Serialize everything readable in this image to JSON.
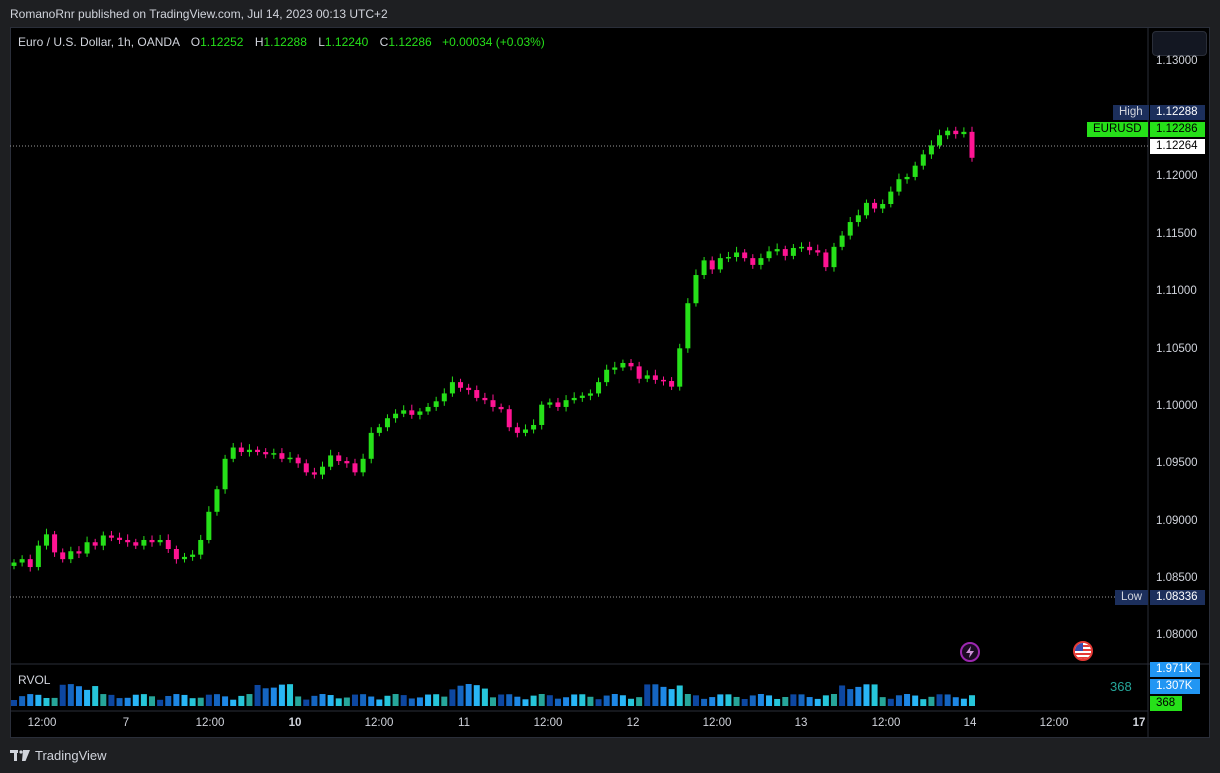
{
  "header": {
    "text": "RomanoRnr published on TradingView.com, Jul 14, 2023 00:13 UTC+2"
  },
  "symbol": {
    "name": "Euro / U.S. Dollar, 1h, OANDA",
    "open_key": "O",
    "open": "1.12252",
    "high_key": "H",
    "high": "1.12288",
    "low_key": "L",
    "low": "1.12240",
    "close_key": "C",
    "close": "1.12286",
    "change": "+0.00034 (+0.03%)"
  },
  "price_axis": {
    "labels": [
      "1.13000",
      "1.12000",
      "1.11500",
      "1.11000",
      "1.10500",
      "1.10000",
      "1.09500",
      "1.09000",
      "1.08500",
      "1.08000"
    ]
  },
  "tags": {
    "high_label": "High",
    "high_value": "1.12288",
    "symbol_label": "EURUSD",
    "symbol_value": "1.12286",
    "crosshair_value": "1.12264",
    "low_label": "Low",
    "low_value": "1.08336"
  },
  "time_axis": {
    "labels": [
      "12:00",
      "7",
      "12:00",
      "10",
      "12:00",
      "11",
      "12:00",
      "12",
      "12:00",
      "13",
      "12:00",
      "14",
      "12:00",
      "17"
    ]
  },
  "rvol": {
    "title": "RVOL",
    "value_label": "368",
    "axis_values": [
      "1.971K",
      "1.307K",
      "368"
    ]
  },
  "events": {
    "left_icon": "lightning-icon",
    "right_icon": "us-flag-icon"
  },
  "footer": {
    "brand": "TradingView"
  },
  "colors": {
    "up": "#26e019",
    "down": "#ff1493",
    "background": "#000000",
    "tag_dark": "#1c2f5c",
    "tag_green": "#26e019",
    "rvol_blue": "#2196f3"
  },
  "chart_data": {
    "type": "candlestick",
    "title": "Euro / U.S. Dollar, 1h, OANDA",
    "x_unit": "hourly bars, Jul 6 – Jul 14 2023",
    "ylim": [
      1.078,
      1.1345
    ],
    "y_ticks": [
      1.08,
      1.085,
      1.09,
      1.095,
      1.1,
      1.105,
      1.11,
      1.115,
      1.12,
      1.13
    ],
    "ohlc_closes_approx": [
      1.087,
      1.0873,
      1.0866,
      1.0885,
      1.0895,
      1.0879,
      1.0873,
      1.088,
      1.0878,
      1.0888,
      1.0885,
      1.0894,
      1.0892,
      1.089,
      1.0888,
      1.0885,
      1.089,
      1.0888,
      1.089,
      1.0882,
      1.0873,
      1.0875,
      1.0877,
      1.089,
      1.0915,
      1.0935,
      1.0962,
      1.0972,
      1.0968,
      1.097,
      1.0968,
      1.0966,
      1.0967,
      1.0962,
      1.0963,
      1.0958,
      1.095,
      1.0948,
      1.0955,
      1.0965,
      1.096,
      1.0958,
      1.095,
      1.0962,
      1.0985,
      1.099,
      1.0998,
      1.1002,
      1.1005,
      1.1001,
      1.1004,
      1.1008,
      1.1013,
      1.102,
      1.103,
      1.1025,
      1.1023,
      1.1016,
      1.1014,
      1.1008,
      1.1006,
      1.099,
      1.0985,
      1.0988,
      1.0992,
      1.101,
      1.1012,
      1.1008,
      1.1014,
      1.1016,
      1.1018,
      1.102,
      1.103,
      1.1041,
      1.1043,
      1.1047,
      1.1044,
      1.1033,
      1.1036,
      1.1032,
      1.1031,
      1.1026,
      1.106,
      1.11,
      1.1125,
      1.1138,
      1.113,
      1.114,
      1.1141,
      1.1145,
      1.114,
      1.1134,
      1.114,
      1.1146,
      1.1148,
      1.1142,
      1.1149,
      1.115,
      1.1147,
      1.1145,
      1.1132,
      1.115,
      1.116,
      1.1172,
      1.1178,
      1.1189,
      1.1184,
      1.1188,
      1.1199,
      1.121,
      1.1212,
      1.1222,
      1.1232,
      1.124,
      1.1249,
      1.1253,
      1.125,
      1.1252,
      1.1229
    ],
    "high": 1.12288,
    "low": 1.08336,
    "last": 1.12286
  }
}
